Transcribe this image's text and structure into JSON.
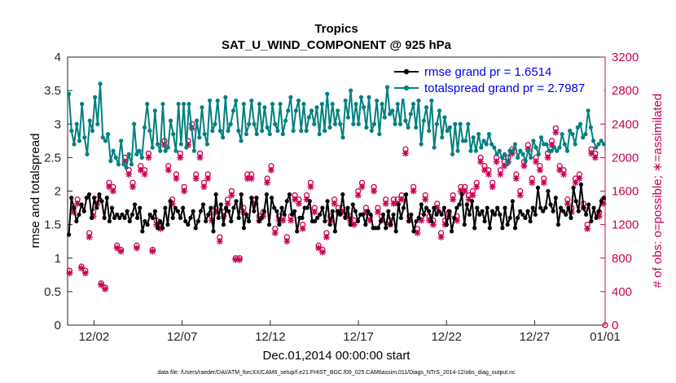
{
  "chart_data": {
    "type": "line",
    "title": "Tropics",
    "subtitle": "SAT_U_WIND_COMPONENT @ 925 hPa",
    "xlabel": "Dec.01,2014 00:00:00 start",
    "ylabel": "rmse and totalspread",
    "ylabel_right": "# of obs: o=possible; ∗=assimilated",
    "xlim": [
      0.5,
      31
    ],
    "ylim": [
      0,
      4
    ],
    "ylim_right": [
      0,
      3200
    ],
    "x_ticks": [
      2,
      7,
      12,
      17,
      22,
      27,
      32
    ],
    "x_tick_labels": [
      "12/02",
      "12/07",
      "12/12",
      "12/17",
      "12/22",
      "12/27",
      "01/01"
    ],
    "y_ticks": [
      "0",
      "0.5",
      "1",
      "1.5",
      "2",
      "2.5",
      "3",
      "3.5",
      "4"
    ],
    "y_ticks_right": [
      "0",
      "400",
      "800",
      "1200",
      "1600",
      "2000",
      "2400",
      "2800",
      "3200"
    ],
    "legend_position": "top-right",
    "series": [
      {
        "name": "rmse grand pr = 1.6514",
        "color": "#000000",
        "marker": "filled-circle",
        "values": [
          1.35,
          1.9,
          1.75,
          1.55,
          1.65,
          1.8,
          1.7,
          1.9,
          1.95,
          1.6,
          1.9,
          1.75,
          1.95,
          1.85,
          1.6,
          1.9,
          1.55,
          1.75,
          1.6,
          1.65,
          1.6,
          1.65,
          1.6,
          1.7,
          1.55,
          1.65,
          1.8,
          1.6,
          1.75,
          1.4,
          1.55,
          1.5,
          1.65,
          1.6,
          1.7,
          1.45,
          1.55,
          1.45,
          1.75,
          1.5,
          1.85,
          1.6,
          1.75,
          1.7,
          1.6,
          1.75,
          1.55,
          1.5,
          1.6,
          1.7,
          1.45,
          1.55,
          1.7,
          1.8,
          1.55,
          1.65,
          1.75,
          1.4,
          1.95,
          1.6,
          1.8,
          1.5,
          1.75,
          1.7,
          1.55,
          1.75,
          1.85,
          1.6,
          1.95,
          1.45,
          1.65,
          1.55,
          1.9,
          1.7,
          1.9,
          1.55,
          1.6,
          1.7,
          1.95,
          1.5,
          1.9,
          1.75,
          1.7,
          1.5,
          1.75,
          1.65,
          1.85,
          1.95,
          1.65,
          1.7,
          1.4,
          1.6,
          1.6,
          1.75,
          1.75,
          1.85,
          1.55,
          1.55,
          1.6,
          1.65,
          1.75,
          1.55,
          1.85,
          1.5,
          1.7,
          1.4,
          1.7,
          1.65,
          1.95,
          1.6,
          1.75,
          1.5,
          1.8,
          1.7,
          1.55,
          1.65,
          1.65,
          1.5,
          1.7,
          1.65,
          1.45,
          1.45,
          1.45,
          1.55,
          1.65,
          1.45,
          1.7,
          1.5,
          1.65,
          1.4,
          1.8,
          1.6,
          1.75,
          1.95,
          1.55,
          1.65,
          1.4,
          1.55,
          1.6,
          1.8,
          1.65,
          1.75,
          1.7,
          1.55,
          1.75,
          1.65,
          1.7,
          1.65,
          1.75,
          1.5,
          1.7,
          1.4,
          1.6,
          1.75,
          1.8,
          1.95,
          1.5,
          1.8,
          1.65,
          1.85,
          1.45,
          1.75,
          1.65,
          1.7,
          1.55,
          1.75,
          1.45,
          1.7,
          1.65,
          1.75,
          1.65,
          1.45,
          1.75,
          1.5,
          1.6,
          1.85,
          1.45,
          1.6,
          1.7,
          1.65,
          1.6,
          1.7,
          1.55,
          1.75,
          1.65,
          2.05,
          1.75,
          1.7,
          1.75,
          2.0,
          1.8,
          1.7,
          1.9,
          1.5,
          1.75,
          1.7,
          1.65,
          1.75,
          1.6,
          2.05,
          1.85,
          1.7,
          2.1,
          1.75,
          1.65,
          1.8,
          1.55,
          1.75,
          1.6,
          1.7,
          1.85,
          1.9
        ]
      },
      {
        "name": "totalspread grand pr = 2.7987",
        "color": "#008080",
        "marker": "filled-circle",
        "values": [
          3.45,
          2.9,
          2.7,
          3.0,
          2.75,
          3.3,
          2.8,
          2.55,
          3.05,
          2.9,
          3.4,
          3.0,
          3.6,
          2.8,
          2.75,
          2.85,
          2.45,
          2.6,
          2.5,
          2.4,
          2.75,
          2.4,
          2.35,
          2.55,
          2.4,
          3.0,
          2.55,
          2.6,
          2.5,
          2.95,
          3.3,
          2.9,
          2.65,
          3.2,
          2.7,
          2.6,
          3.3,
          2.6,
          2.65,
          3.05,
          2.85,
          2.6,
          3.3,
          2.7,
          3.3,
          2.65,
          3.3,
          2.95,
          2.6,
          3.05,
          2.8,
          3.25,
          2.85,
          2.7,
          3.35,
          2.9,
          3.0,
          3.35,
          2.9,
          2.8,
          3.4,
          2.9,
          3.0,
          3.2,
          3.35,
          2.9,
          2.75,
          3.3,
          2.85,
          3.0,
          3.35,
          3.0,
          2.85,
          3.3,
          2.9,
          3.25,
          2.95,
          2.85,
          3.3,
          3.0,
          2.9,
          3.3,
          2.85,
          3.05,
          3.2,
          3.4,
          2.9,
          3.2,
          3.35,
          2.9,
          3.3,
          2.9,
          3.1,
          3.2,
          3.0,
          3.25,
          2.85,
          3.3,
          2.9,
          3.45,
          2.95,
          3.3,
          3.0,
          3.2,
          3.0,
          2.8,
          3.35,
          3.1,
          3.5,
          3.0,
          3.3,
          3.0,
          3.4,
          3.25,
          2.95,
          3.4,
          2.9,
          3.0,
          3.35,
          2.85,
          3.3,
          3.1,
          3.55,
          3.15,
          3.2,
          3.0,
          3.3,
          3.0,
          3.45,
          3.05,
          2.95,
          3.15,
          3.3,
          2.95,
          3.35,
          2.7,
          3.05,
          3.25,
          2.9,
          3.35,
          2.65,
          3.0,
          3.2,
          2.8,
          3.1,
          2.9,
          2.95,
          2.55,
          3.0,
          2.6,
          3.0,
          2.75,
          2.75,
          3.0,
          2.6,
          2.8,
          2.6,
          2.85,
          2.65,
          2.75,
          2.7,
          2.85,
          2.7,
          2.65,
          2.55,
          2.6,
          2.5,
          2.55,
          2.4,
          2.6,
          2.6,
          2.7,
          2.5,
          2.6,
          2.55,
          2.45,
          2.6,
          2.5,
          2.75,
          2.65,
          2.55,
          2.8,
          2.7,
          2.7,
          2.6,
          2.6,
          2.65,
          2.6,
          2.65,
          2.85,
          2.7,
          2.6,
          2.9,
          2.85,
          2.7,
          2.95,
          3.0,
          2.8,
          2.85,
          3.2,
          2.95,
          2.75,
          2.65,
          2.7,
          2.75,
          2.7
        ]
      },
      {
        "name": "obs possible",
        "color": "#cc0055",
        "marker": "open-circle",
        "axis": "right",
        "values": [
          650,
          1400,
          1500,
          700,
          650,
          1100,
          1350,
          1500,
          500,
          450,
          1700,
          1650,
          950,
          900,
          2000,
          1850,
          1700,
          950,
          1900,
          1850,
          2050,
          900,
          1250,
          1200,
          2200,
          1900,
          1500,
          1800,
          2050,
          1650,
          2200,
          2400,
          1800,
          2050,
          1700,
          1800,
          1300,
          1400,
          1050,
          1350,
          1500,
          1600,
          800,
          800,
          1400,
          1800,
          1800,
          1500,
          1300,
          1350,
          1750,
          1900,
          1150,
          1300,
          1300,
          1050,
          1300,
          1550,
          1500,
          1200,
          1550,
          1700,
          1400,
          950,
          900,
          1100,
          1300,
          1500,
          1400,
          1400,
          1350,
          1300,
          1250,
          1600,
          1700,
          1400,
          1300,
          1650,
          1400,
          1300,
          1500,
          1250,
          1500,
          1500,
          1550,
          2100,
          1300,
          1650,
          1150,
          1300,
          1550,
          1300,
          1250,
          1450,
          1100,
          1250,
          1350,
          1550,
          1300,
          1650,
          1650,
          1550,
          1600,
          1700,
          2000,
          1900,
          1850,
          1700,
          2000,
          1850,
          1950,
          2000,
          2100,
          1800,
          1600,
          1950,
          2150,
          1750,
          2000,
          1900,
          1750,
          2050,
          2200,
          2350,
          1900,
          1850,
          1500,
          1400,
          1750,
          1800,
          1450,
          1200,
          2100,
          2050,
          1350,
          1500
        ]
      },
      {
        "name": "obs assimilated",
        "color": "#cc0055",
        "marker": "asterisk",
        "axis": "right",
        "values": [
          620,
          1350,
          1450,
          680,
          620,
          1050,
          1300,
          1450,
          480,
          430,
          1650,
          1600,
          920,
          880,
          1950,
          1800,
          1650,
          920,
          1850,
          1800,
          2000,
          880,
          1200,
          1150,
          2150,
          1850,
          1450,
          1750,
          2000,
          1600,
          2150,
          2350,
          1750,
          2000,
          1650,
          1750,
          1250,
          1350,
          1000,
          1300,
          1450,
          1550,
          780,
          780,
          1350,
          1750,
          1750,
          1450,
          1250,
          1300,
          1700,
          1850,
          1100,
          1250,
          1250,
          1000,
          1250,
          1500,
          1450,
          1150,
          1500,
          1650,
          1350,
          920,
          870,
          1050,
          1250,
          1450,
          1350,
          1350,
          1300,
          1250,
          1200,
          1550,
          1650,
          1350,
          1250,
          1600,
          1350,
          1250,
          1450,
          1200,
          1450,
          1450,
          1500,
          2050,
          1250,
          1600,
          1100,
          1250,
          1500,
          1250,
          1200,
          1400,
          1050,
          1200,
          1300,
          1500,
          1250,
          1600,
          1600,
          1500,
          1550,
          1650,
          1950,
          1850,
          1800,
          1650,
          1950,
          1800,
          1900,
          1950,
          2050,
          1750,
          1550,
          1900,
          2100,
          1700,
          1950,
          1850,
          1700,
          2000,
          2150,
          2300,
          1850,
          1800,
          1450,
          1350,
          1700,
          1750,
          1400,
          1150,
          2050,
          2000,
          1300,
          1450
        ]
      }
    ],
    "footnote": "data file: /Users/raeder/DAI/ATM_forcXX/CAM6_setup/f.e21.FHIST_BGC.f09_025.CAM6assim.011/Diags_NTrS_2014-12/obs_diag_output.nc"
  }
}
